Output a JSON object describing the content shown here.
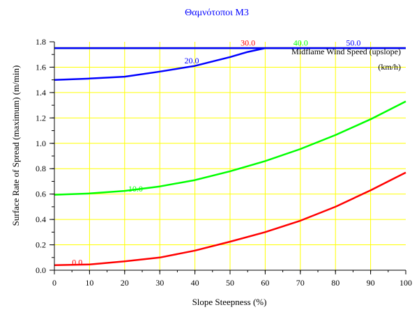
{
  "chart_data": {
    "type": "line",
    "title": "Θαμνότοποι M3",
    "xlabel": "Slope Steepness (%)",
    "ylabel": "Surface Rate of Spread (maximum) (m/min)",
    "xlim": [
      0,
      100
    ],
    "ylim": [
      0,
      1.8
    ],
    "x_ticks": [
      "0",
      "10",
      "20",
      "30",
      "40",
      "50",
      "60",
      "70",
      "80",
      "90",
      "100"
    ],
    "y_ticks": [
      "0.0",
      "0.2",
      "0.4",
      "0.6",
      "0.8",
      "1.0",
      "1.2",
      "1.4",
      "1.6",
      "1.8"
    ],
    "x_minor_step": 5,
    "y_minor_step": 0.1,
    "grid": true,
    "grid_color": "#ffff00",
    "legend_title": [
      "Midflame Wind Speed (upslope)",
      "(km/h)"
    ],
    "series": [
      {
        "name": "0.0",
        "color": "#ff0000",
        "label_at": [
          5,
          0.04
        ],
        "x": [
          0,
          10,
          20,
          30,
          40,
          50,
          60,
          70,
          80,
          90,
          100
        ],
        "y": [
          0.04,
          0.045,
          0.07,
          0.1,
          0.155,
          0.225,
          0.3,
          0.39,
          0.5,
          0.63,
          0.77
        ]
      },
      {
        "name": "10.0",
        "color": "#00ff00",
        "label_at": [
          21,
          0.62
        ],
        "x": [
          0,
          10,
          20,
          30,
          40,
          50,
          60,
          70,
          80,
          90,
          100
        ],
        "y": [
          0.595,
          0.605,
          0.625,
          0.66,
          0.71,
          0.78,
          0.86,
          0.955,
          1.065,
          1.19,
          1.33
        ]
      },
      {
        "name": "20.0",
        "color": "#0000ff",
        "label_at": [
          37,
          1.63
        ],
        "x": [
          0,
          10,
          20,
          30,
          40,
          50,
          55,
          60,
          70,
          80,
          90,
          100
        ],
        "y": [
          1.5,
          1.51,
          1.525,
          1.565,
          1.61,
          1.68,
          1.72,
          1.75,
          1.75,
          1.75,
          1.75,
          1.75
        ]
      },
      {
        "name": "30.0",
        "color": "#ff0000",
        "label_at": [
          53,
          1.77
        ],
        "x": [
          0,
          100
        ],
        "y": [
          1.75,
          1.75
        ]
      },
      {
        "name": "40.0",
        "color": "#00ff00",
        "label_at": [
          68,
          1.77
        ],
        "x": [
          0,
          100
        ],
        "y": [
          1.75,
          1.75
        ]
      },
      {
        "name": "50.0",
        "color": "#0000ff",
        "label_at": [
          83,
          1.77
        ],
        "x": [
          0,
          100
        ],
        "y": [
          1.75,
          1.75
        ]
      }
    ]
  }
}
